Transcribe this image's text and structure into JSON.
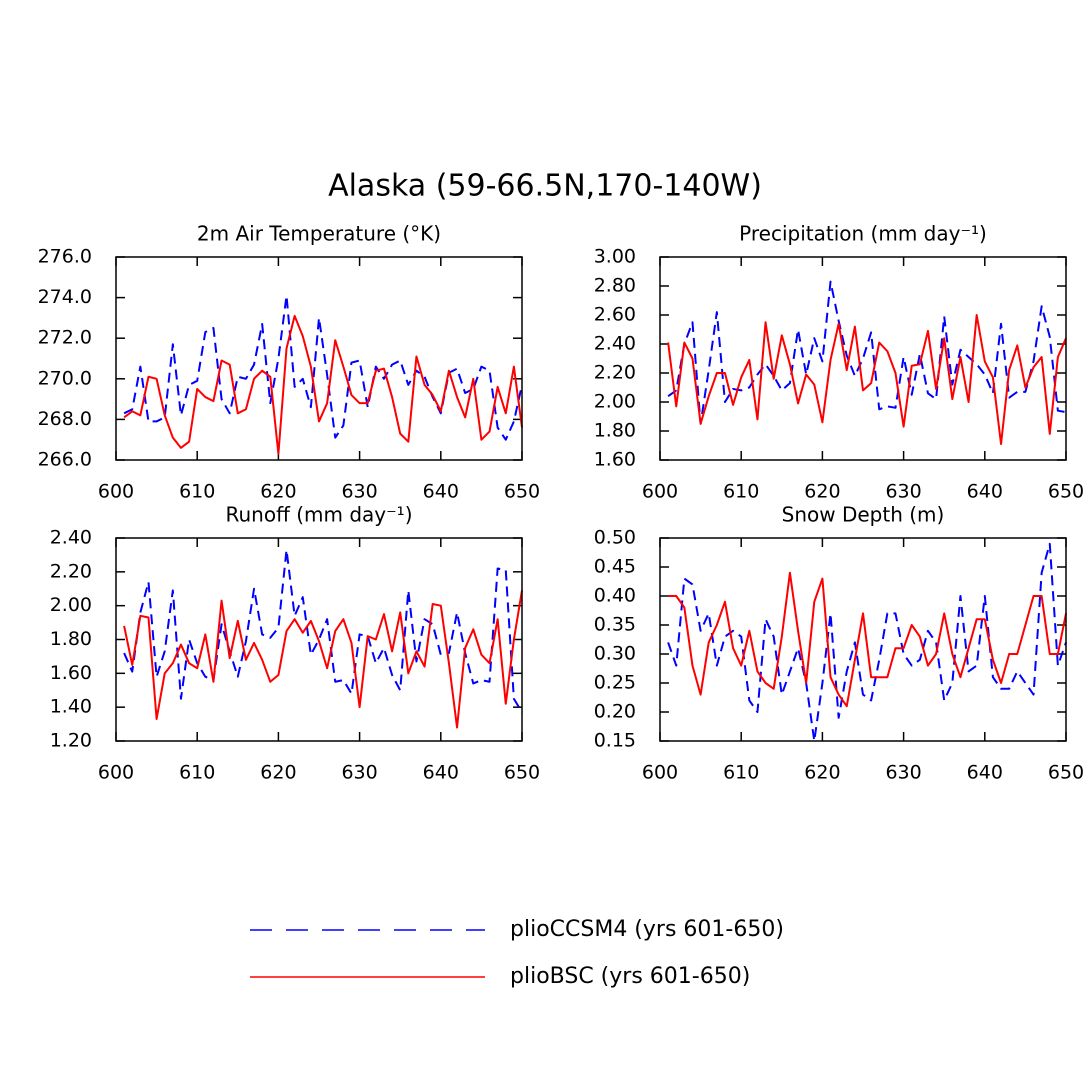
{
  "title": "Alaska (59-66.5N,170-140W)",
  "legend": [
    {
      "name": "plioCCSM4 (yrs 601-650)",
      "color": "#0000ff",
      "dash": true
    },
    {
      "name": "plioBSC (yrs 601-650)",
      "color": "#ff0000",
      "dash": false
    }
  ],
  "chart_data": [
    {
      "type": "line",
      "title": "2m Air Temperature (°K)",
      "x": [
        601,
        602,
        603,
        604,
        605,
        606,
        607,
        608,
        609,
        610,
        611,
        612,
        613,
        614,
        615,
        616,
        617,
        618,
        619,
        620,
        621,
        622,
        623,
        624,
        625,
        626,
        627,
        628,
        629,
        630,
        631,
        632,
        633,
        634,
        635,
        636,
        637,
        638,
        639,
        640,
        641,
        642,
        643,
        644,
        645,
        646,
        647,
        648,
        649,
        650
      ],
      "xlim": [
        600,
        650
      ],
      "xticks": [
        600,
        610,
        620,
        630,
        640,
        650
      ],
      "ylim": [
        266,
        276
      ],
      "yticks": [
        {
          "value": 266,
          "label": "266.0"
        },
        {
          "value": 268,
          "label": "268.0"
        },
        {
          "value": 270,
          "label": "270.0"
        },
        {
          "value": 272,
          "label": "272.0"
        },
        {
          "value": 274,
          "label": "274.0"
        },
        {
          "value": 276,
          "label": "276.0"
        }
      ],
      "series": [
        {
          "color": "#0000ff",
          "dash": true,
          "values": [
            268.3,
            268.5,
            270.6,
            267.9,
            267.9,
            268.1,
            271.7,
            268.2,
            269.7,
            269.9,
            272.3,
            272.5,
            269.0,
            268.3,
            270.1,
            270.0,
            270.7,
            272.7,
            268.8,
            271.0,
            274.1,
            269.6,
            270.0,
            268.6,
            273.0,
            270.2,
            267.1,
            267.7,
            270.8,
            270.9,
            268.6,
            270.6,
            270.0,
            270.7,
            270.9,
            269.7,
            270.4,
            270.1,
            269.1,
            268.3,
            270.3,
            270.5,
            269.3,
            269.5,
            270.6,
            270.4,
            267.6,
            267.0,
            267.9,
            269.7
          ]
        },
        {
          "color": "#ff0000",
          "dash": false,
          "values": [
            268.1,
            268.4,
            268.2,
            270.1,
            270.0,
            268.2,
            267.1,
            266.6,
            266.9,
            269.5,
            269.1,
            268.9,
            270.9,
            270.7,
            268.3,
            268.5,
            270.0,
            270.4,
            270.1,
            266.3,
            271.5,
            273.1,
            272.1,
            270.6,
            267.9,
            268.8,
            271.9,
            270.6,
            269.2,
            268.8,
            268.8,
            270.4,
            270.5,
            269.1,
            267.3,
            266.9,
            271.1,
            269.7,
            269.2,
            268.4,
            270.4,
            269.1,
            268.1,
            270.0,
            267.0,
            267.4,
            269.6,
            268.3,
            270.6,
            267.6
          ]
        }
      ]
    },
    {
      "type": "line",
      "title": "Precipitation (mm day⁻¹)",
      "x": [
        601,
        602,
        603,
        604,
        605,
        606,
        607,
        608,
        609,
        610,
        611,
        612,
        613,
        614,
        615,
        616,
        617,
        618,
        619,
        620,
        621,
        622,
        623,
        624,
        625,
        626,
        627,
        628,
        629,
        630,
        631,
        632,
        633,
        634,
        635,
        636,
        637,
        638,
        639,
        640,
        641,
        642,
        643,
        644,
        645,
        646,
        647,
        648,
        649,
        650
      ],
      "xlim": [
        600,
        650
      ],
      "xticks": [
        600,
        610,
        620,
        630,
        640,
        650
      ],
      "ylim": [
        1.6,
        3.0
      ],
      "yticks": [
        {
          "value": 1.6,
          "label": "1.60"
        },
        {
          "value": 1.8,
          "label": "1.80"
        },
        {
          "value": 2.0,
          "label": "2.00"
        },
        {
          "value": 2.2,
          "label": "2.20"
        },
        {
          "value": 2.4,
          "label": "2.40"
        },
        {
          "value": 2.6,
          "label": "2.60"
        },
        {
          "value": 2.8,
          "label": "2.80"
        },
        {
          "value": 3.0,
          "label": "3.00"
        }
      ],
      "series": [
        {
          "color": "#0000ff",
          "dash": true,
          "values": [
            2.04,
            2.08,
            2.4,
            2.55,
            1.85,
            2.22,
            2.62,
            2.0,
            2.09,
            2.08,
            2.1,
            2.19,
            2.26,
            2.18,
            2.08,
            2.13,
            2.5,
            2.19,
            2.44,
            2.28,
            2.83,
            2.56,
            2.32,
            2.18,
            2.3,
            2.48,
            1.95,
            1.97,
            1.96,
            2.31,
            2.05,
            2.33,
            2.06,
            2.02,
            2.59,
            2.12,
            2.36,
            2.31,
            2.26,
            2.19,
            2.06,
            2.54,
            2.03,
            2.07,
            2.07,
            2.28,
            2.66,
            2.45,
            1.94,
            1.93
          ]
        },
        {
          "color": "#ff0000",
          "dash": false,
          "values": [
            2.41,
            1.97,
            2.41,
            2.3,
            1.85,
            2.04,
            2.2,
            2.2,
            1.98,
            2.17,
            2.29,
            1.88,
            2.55,
            2.16,
            2.46,
            2.26,
            1.99,
            2.19,
            2.12,
            1.86,
            2.29,
            2.54,
            2.22,
            2.52,
            2.08,
            2.13,
            2.41,
            2.35,
            2.2,
            1.83,
            2.25,
            2.26,
            2.49,
            2.09,
            2.44,
            2.02,
            2.31,
            2.0,
            2.6,
            2.28,
            2.17,
            1.71,
            2.22,
            2.39,
            2.1,
            2.24,
            2.31,
            1.78,
            2.31,
            2.44
          ]
        }
      ]
    },
    {
      "type": "line",
      "title": "Runoff (mm day⁻¹)",
      "x": [
        601,
        602,
        603,
        604,
        605,
        606,
        607,
        608,
        609,
        610,
        611,
        612,
        613,
        614,
        615,
        616,
        617,
        618,
        619,
        620,
        621,
        622,
        623,
        624,
        625,
        626,
        627,
        628,
        629,
        630,
        631,
        632,
        633,
        634,
        635,
        636,
        637,
        638,
        639,
        640,
        641,
        642,
        643,
        644,
        645,
        646,
        647,
        648,
        649,
        650
      ],
      "xlim": [
        600,
        650
      ],
      "xticks": [
        600,
        610,
        620,
        630,
        640,
        650
      ],
      "ylim": [
        1.2,
        2.4
      ],
      "yticks": [
        {
          "value": 1.2,
          "label": "1.20"
        },
        {
          "value": 1.4,
          "label": "1.40"
        },
        {
          "value": 1.6,
          "label": "1.60"
        },
        {
          "value": 1.8,
          "label": "1.80"
        },
        {
          "value": 2.0,
          "label": "2.00"
        },
        {
          "value": 2.2,
          "label": "2.20"
        },
        {
          "value": 2.4,
          "label": "2.40"
        }
      ],
      "series": [
        {
          "color": "#0000ff",
          "dash": true,
          "values": [
            1.72,
            1.61,
            1.96,
            2.14,
            1.58,
            1.73,
            2.09,
            1.45,
            1.8,
            1.66,
            1.58,
            1.56,
            1.89,
            1.73,
            1.58,
            1.79,
            2.1,
            1.83,
            1.81,
            1.87,
            2.33,
            1.94,
            2.05,
            1.71,
            1.8,
            1.92,
            1.55,
            1.56,
            1.48,
            1.83,
            1.82,
            1.66,
            1.75,
            1.59,
            1.5,
            2.09,
            1.67,
            1.92,
            1.89,
            1.71,
            1.72,
            1.96,
            1.72,
            1.54,
            1.56,
            1.55,
            2.22,
            2.21,
            1.45,
            1.37
          ]
        },
        {
          "color": "#ff0000",
          "dash": false,
          "values": [
            1.88,
            1.65,
            1.94,
            1.93,
            1.33,
            1.6,
            1.66,
            1.77,
            1.66,
            1.63,
            1.83,
            1.55,
            2.03,
            1.69,
            1.91,
            1.68,
            1.78,
            1.68,
            1.55,
            1.59,
            1.85,
            1.92,
            1.84,
            1.91,
            1.79,
            1.63,
            1.85,
            1.92,
            1.78,
            1.4,
            1.82,
            1.8,
            1.95,
            1.73,
            1.96,
            1.6,
            1.73,
            1.64,
            2.01,
            2.0,
            1.66,
            1.28,
            1.75,
            1.86,
            1.71,
            1.66,
            1.92,
            1.42,
            1.8,
            2.09
          ]
        }
      ]
    },
    {
      "type": "line",
      "title": "Snow Depth (m)",
      "x": [
        601,
        602,
        603,
        604,
        605,
        606,
        607,
        608,
        609,
        610,
        611,
        612,
        613,
        614,
        615,
        616,
        617,
        618,
        619,
        620,
        621,
        622,
        623,
        624,
        625,
        626,
        627,
        628,
        629,
        630,
        631,
        632,
        633,
        634,
        635,
        636,
        637,
        638,
        639,
        640,
        641,
        642,
        643,
        644,
        645,
        646,
        647,
        648,
        649,
        650
      ],
      "xlim": [
        600,
        650
      ],
      "xticks": [
        600,
        610,
        620,
        630,
        640,
        650
      ],
      "ylim": [
        0.15,
        0.5
      ],
      "yticks": [
        {
          "value": 0.15,
          "label": "0.15"
        },
        {
          "value": 0.2,
          "label": "0.20"
        },
        {
          "value": 0.25,
          "label": "0.25"
        },
        {
          "value": 0.3,
          "label": "0.30"
        },
        {
          "value": 0.35,
          "label": "0.35"
        },
        {
          "value": 0.4,
          "label": "0.40"
        },
        {
          "value": 0.45,
          "label": "0.45"
        },
        {
          "value": 0.5,
          "label": "0.50"
        }
      ],
      "series": [
        {
          "color": "#0000ff",
          "dash": true,
          "values": [
            0.32,
            0.28,
            0.43,
            0.42,
            0.34,
            0.37,
            0.28,
            0.33,
            0.34,
            0.33,
            0.22,
            0.2,
            0.36,
            0.33,
            0.23,
            0.27,
            0.31,
            0.25,
            0.15,
            0.25,
            0.37,
            0.19,
            0.27,
            0.32,
            0.23,
            0.22,
            0.29,
            0.37,
            0.37,
            0.3,
            0.28,
            0.29,
            0.34,
            0.32,
            0.22,
            0.25,
            0.4,
            0.27,
            0.28,
            0.4,
            0.26,
            0.24,
            0.24,
            0.27,
            0.25,
            0.23,
            0.44,
            0.49,
            0.28,
            0.32
          ]
        },
        {
          "color": "#ff0000",
          "dash": false,
          "values": [
            0.4,
            0.4,
            0.38,
            0.28,
            0.23,
            0.32,
            0.35,
            0.39,
            0.31,
            0.28,
            0.34,
            0.27,
            0.25,
            0.24,
            0.33,
            0.44,
            0.34,
            0.25,
            0.39,
            0.43,
            0.26,
            0.23,
            0.21,
            0.29,
            0.37,
            0.26,
            0.26,
            0.26,
            0.31,
            0.31,
            0.35,
            0.33,
            0.28,
            0.3,
            0.37,
            0.3,
            0.26,
            0.31,
            0.36,
            0.36,
            0.29,
            0.25,
            0.3,
            0.3,
            0.35,
            0.4,
            0.4,
            0.3,
            0.3,
            0.37
          ]
        }
      ]
    }
  ]
}
